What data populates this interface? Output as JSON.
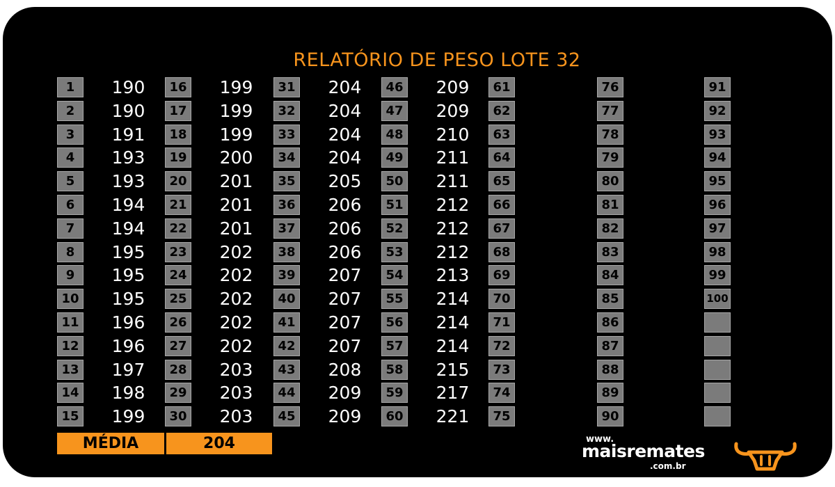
{
  "title": "RELATÓRIO DE PESO LOTE 32",
  "columns": [
    {
      "items": [
        {
          "n": "1",
          "w": "190"
        },
        {
          "n": "2",
          "w": "190"
        },
        {
          "n": "3",
          "w": "191"
        },
        {
          "n": "4",
          "w": "193"
        },
        {
          "n": "5",
          "w": "193"
        },
        {
          "n": "6",
          "w": "194"
        },
        {
          "n": "7",
          "w": "194"
        },
        {
          "n": "8",
          "w": "195"
        },
        {
          "n": "9",
          "w": "195"
        },
        {
          "n": "10",
          "w": "195"
        },
        {
          "n": "11",
          "w": "196"
        },
        {
          "n": "12",
          "w": "196"
        },
        {
          "n": "13",
          "w": "197"
        },
        {
          "n": "14",
          "w": "198"
        },
        {
          "n": "15",
          "w": "199"
        }
      ]
    },
    {
      "items": [
        {
          "n": "16",
          "w": "199"
        },
        {
          "n": "17",
          "w": "199"
        },
        {
          "n": "18",
          "w": "199"
        },
        {
          "n": "19",
          "w": "200"
        },
        {
          "n": "20",
          "w": "201"
        },
        {
          "n": "21",
          "w": "201"
        },
        {
          "n": "22",
          "w": "201"
        },
        {
          "n": "23",
          "w": "202"
        },
        {
          "n": "24",
          "w": "202"
        },
        {
          "n": "25",
          "w": "202"
        },
        {
          "n": "26",
          "w": "202"
        },
        {
          "n": "27",
          "w": "202"
        },
        {
          "n": "28",
          "w": "203"
        },
        {
          "n": "29",
          "w": "203"
        },
        {
          "n": "30",
          "w": "203"
        }
      ]
    },
    {
      "items": [
        {
          "n": "31",
          "w": "204"
        },
        {
          "n": "32",
          "w": "204"
        },
        {
          "n": "33",
          "w": "204"
        },
        {
          "n": "34",
          "w": "204"
        },
        {
          "n": "35",
          "w": "205"
        },
        {
          "n": "36",
          "w": "206"
        },
        {
          "n": "37",
          "w": "206"
        },
        {
          "n": "38",
          "w": "206"
        },
        {
          "n": "39",
          "w": "207"
        },
        {
          "n": "40",
          "w": "207"
        },
        {
          "n": "41",
          "w": "207"
        },
        {
          "n": "42",
          "w": "207"
        },
        {
          "n": "43",
          "w": "208"
        },
        {
          "n": "44",
          "w": "209"
        },
        {
          "n": "45",
          "w": "209"
        }
      ]
    },
    {
      "items": [
        {
          "n": "46",
          "w": "209"
        },
        {
          "n": "47",
          "w": "209"
        },
        {
          "n": "48",
          "w": "210"
        },
        {
          "n": "49",
          "w": "211"
        },
        {
          "n": "50",
          "w": "211"
        },
        {
          "n": "51",
          "w": "212"
        },
        {
          "n": "52",
          "w": "212"
        },
        {
          "n": "53",
          "w": "212"
        },
        {
          "n": "54",
          "w": "213"
        },
        {
          "n": "55",
          "w": "214"
        },
        {
          "n": "56",
          "w": "214"
        },
        {
          "n": "57",
          "w": "214"
        },
        {
          "n": "58",
          "w": "215"
        },
        {
          "n": "59",
          "w": "217"
        },
        {
          "n": "60",
          "w": "221"
        }
      ]
    },
    {
      "items": [
        {
          "n": "61",
          "w": ""
        },
        {
          "n": "62",
          "w": ""
        },
        {
          "n": "63",
          "w": ""
        },
        {
          "n": "64",
          "w": ""
        },
        {
          "n": "65",
          "w": ""
        },
        {
          "n": "66",
          "w": ""
        },
        {
          "n": "67",
          "w": ""
        },
        {
          "n": "68",
          "w": ""
        },
        {
          "n": "69",
          "w": ""
        },
        {
          "n": "70",
          "w": ""
        },
        {
          "n": "71",
          "w": ""
        },
        {
          "n": "72",
          "w": ""
        },
        {
          "n": "73",
          "w": ""
        },
        {
          "n": "74",
          "w": ""
        },
        {
          "n": "75",
          "w": ""
        }
      ]
    },
    {
      "items": [
        {
          "n": "76",
          "w": ""
        },
        {
          "n": "77",
          "w": ""
        },
        {
          "n": "78",
          "w": ""
        },
        {
          "n": "79",
          "w": ""
        },
        {
          "n": "80",
          "w": ""
        },
        {
          "n": "81",
          "w": ""
        },
        {
          "n": "82",
          "w": ""
        },
        {
          "n": "83",
          "w": ""
        },
        {
          "n": "84",
          "w": ""
        },
        {
          "n": "85",
          "w": ""
        },
        {
          "n": "86",
          "w": ""
        },
        {
          "n": "87",
          "w": ""
        },
        {
          "n": "88",
          "w": ""
        },
        {
          "n": "89",
          "w": ""
        },
        {
          "n": "90",
          "w": ""
        }
      ]
    },
    {
      "items": [
        {
          "n": "91",
          "w": ""
        },
        {
          "n": "92",
          "w": ""
        },
        {
          "n": "93",
          "w": ""
        },
        {
          "n": "94",
          "w": ""
        },
        {
          "n": "95",
          "w": ""
        },
        {
          "n": "96",
          "w": ""
        },
        {
          "n": "97",
          "w": ""
        },
        {
          "n": "98",
          "w": ""
        },
        {
          "n": "99",
          "w": ""
        },
        {
          "n": "100",
          "w": ""
        },
        {
          "n": "",
          "w": ""
        },
        {
          "n": "",
          "w": ""
        },
        {
          "n": "",
          "w": ""
        },
        {
          "n": "",
          "w": ""
        },
        {
          "n": "",
          "w": ""
        }
      ]
    }
  ],
  "summary": {
    "label": "MÉDIA",
    "value": "204"
  },
  "brand": {
    "www": "www.",
    "name": "maisremates",
    "domain": ".com.br",
    "logo_icon": "bull-head-icon"
  },
  "colors": {
    "accent": "#f7941d",
    "background": "#000000",
    "cell": "#7b7b7b",
    "text": "#ffffff"
  }
}
